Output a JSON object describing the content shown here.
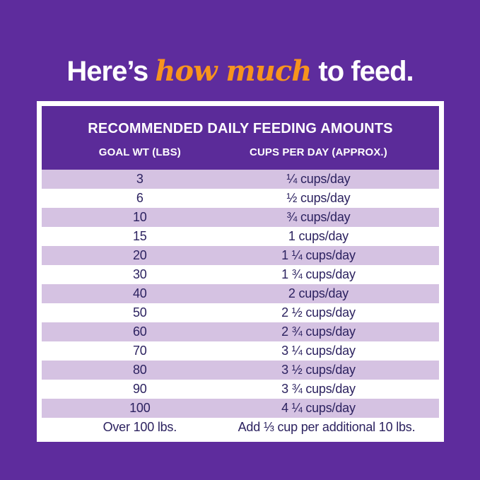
{
  "headline": {
    "prefix": "Here’s ",
    "highlight": "how much",
    "suffix": " to feed."
  },
  "chart_data": {
    "type": "table",
    "title": "RECOMMENDED DAILY FEEDING AMOUNTS",
    "columns": [
      "GOAL WT (LBS)",
      "CUPS PER DAY (APPROX.)"
    ],
    "rows": [
      {
        "goal_wt": "3",
        "cups_per_day": "¼ cups/day"
      },
      {
        "goal_wt": "6",
        "cups_per_day": "½ cups/day"
      },
      {
        "goal_wt": "10",
        "cups_per_day": "¾ cups/day"
      },
      {
        "goal_wt": "15",
        "cups_per_day": "1 cups/day"
      },
      {
        "goal_wt": "20",
        "cups_per_day": "1 ¼ cups/day"
      },
      {
        "goal_wt": "30",
        "cups_per_day": "1 ¾ cups/day"
      },
      {
        "goal_wt": "40",
        "cups_per_day": "2 cups/day"
      },
      {
        "goal_wt": "50",
        "cups_per_day": "2 ½ cups/day"
      },
      {
        "goal_wt": "60",
        "cups_per_day": "2 ¾ cups/day"
      },
      {
        "goal_wt": "70",
        "cups_per_day": "3 ¼ cups/day"
      },
      {
        "goal_wt": "80",
        "cups_per_day": "3 ½ cups/day"
      },
      {
        "goal_wt": "90",
        "cups_per_day": "3 ¾ cups/day"
      },
      {
        "goal_wt": "100",
        "cups_per_day": "4 ¼ cups/day"
      },
      {
        "goal_wt": "Over 100 lbs.",
        "cups_per_day": "Add ⅓ cup per additional 10 lbs."
      }
    ]
  },
  "colors": {
    "background_purple": "#5E2C9D",
    "header_purple": "#5B2B99",
    "row_lavender": "#D5C2E2",
    "row_white": "#FFFFFF",
    "cell_text": "#2C2260",
    "headline_white": "#FFFFFF",
    "accent_orange": "#F7941E"
  }
}
